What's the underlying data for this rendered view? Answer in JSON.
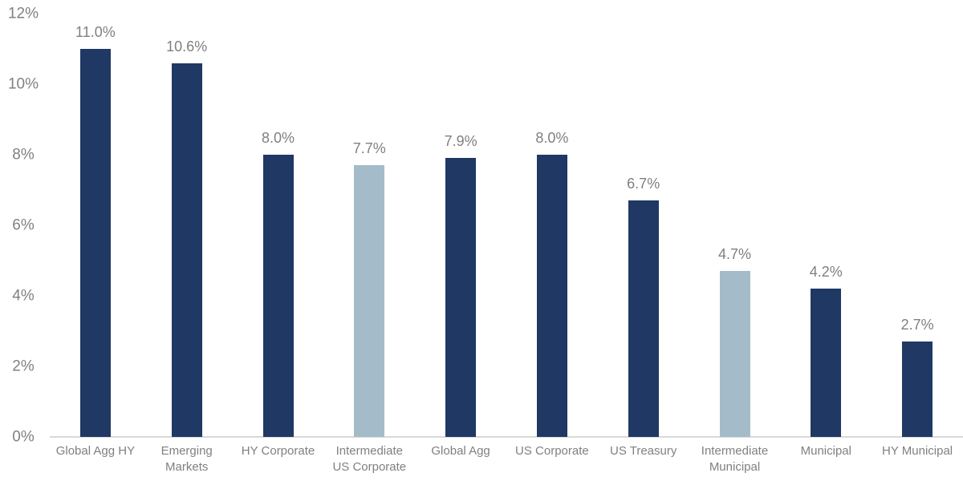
{
  "chart_data": {
    "type": "bar",
    "title": "",
    "xlabel": "",
    "ylabel": "",
    "categories": [
      "Global Agg HY",
      "Emerging\nMarkets",
      "HY Corporate",
      "Intermediate\nUS Corporate",
      "Global Agg",
      "US Corporate",
      "US Treasury",
      "Intermediate\nMunicipal",
      "Municipal",
      "HY Municipal"
    ],
    "values": [
      11.0,
      10.6,
      8.0,
      7.7,
      7.9,
      8.0,
      6.7,
      4.7,
      4.2,
      2.7
    ],
    "value_labels": [
      "11.0%",
      "10.6%",
      "8.0%",
      "7.7%",
      "7.9%",
      "8.0%",
      "6.7%",
      "4.7%",
      "4.2%",
      "2.7%"
    ],
    "bar_styles": [
      "dark",
      "dark",
      "dark",
      "light",
      "dark",
      "dark",
      "dark",
      "light",
      "dark",
      "dark"
    ],
    "ylim": [
      0,
      12
    ],
    "ytick_labels": [
      "0%",
      "2%",
      "4%",
      "6%",
      "8%",
      "10%",
      "12%"
    ],
    "grid": false,
    "legend": "none",
    "colors": {
      "dark": "#1F3864",
      "light": "#A4BCC9",
      "label_text": "#808080",
      "axis_line": "#D9D9D9",
      "background": "#FFFFFF"
    }
  }
}
